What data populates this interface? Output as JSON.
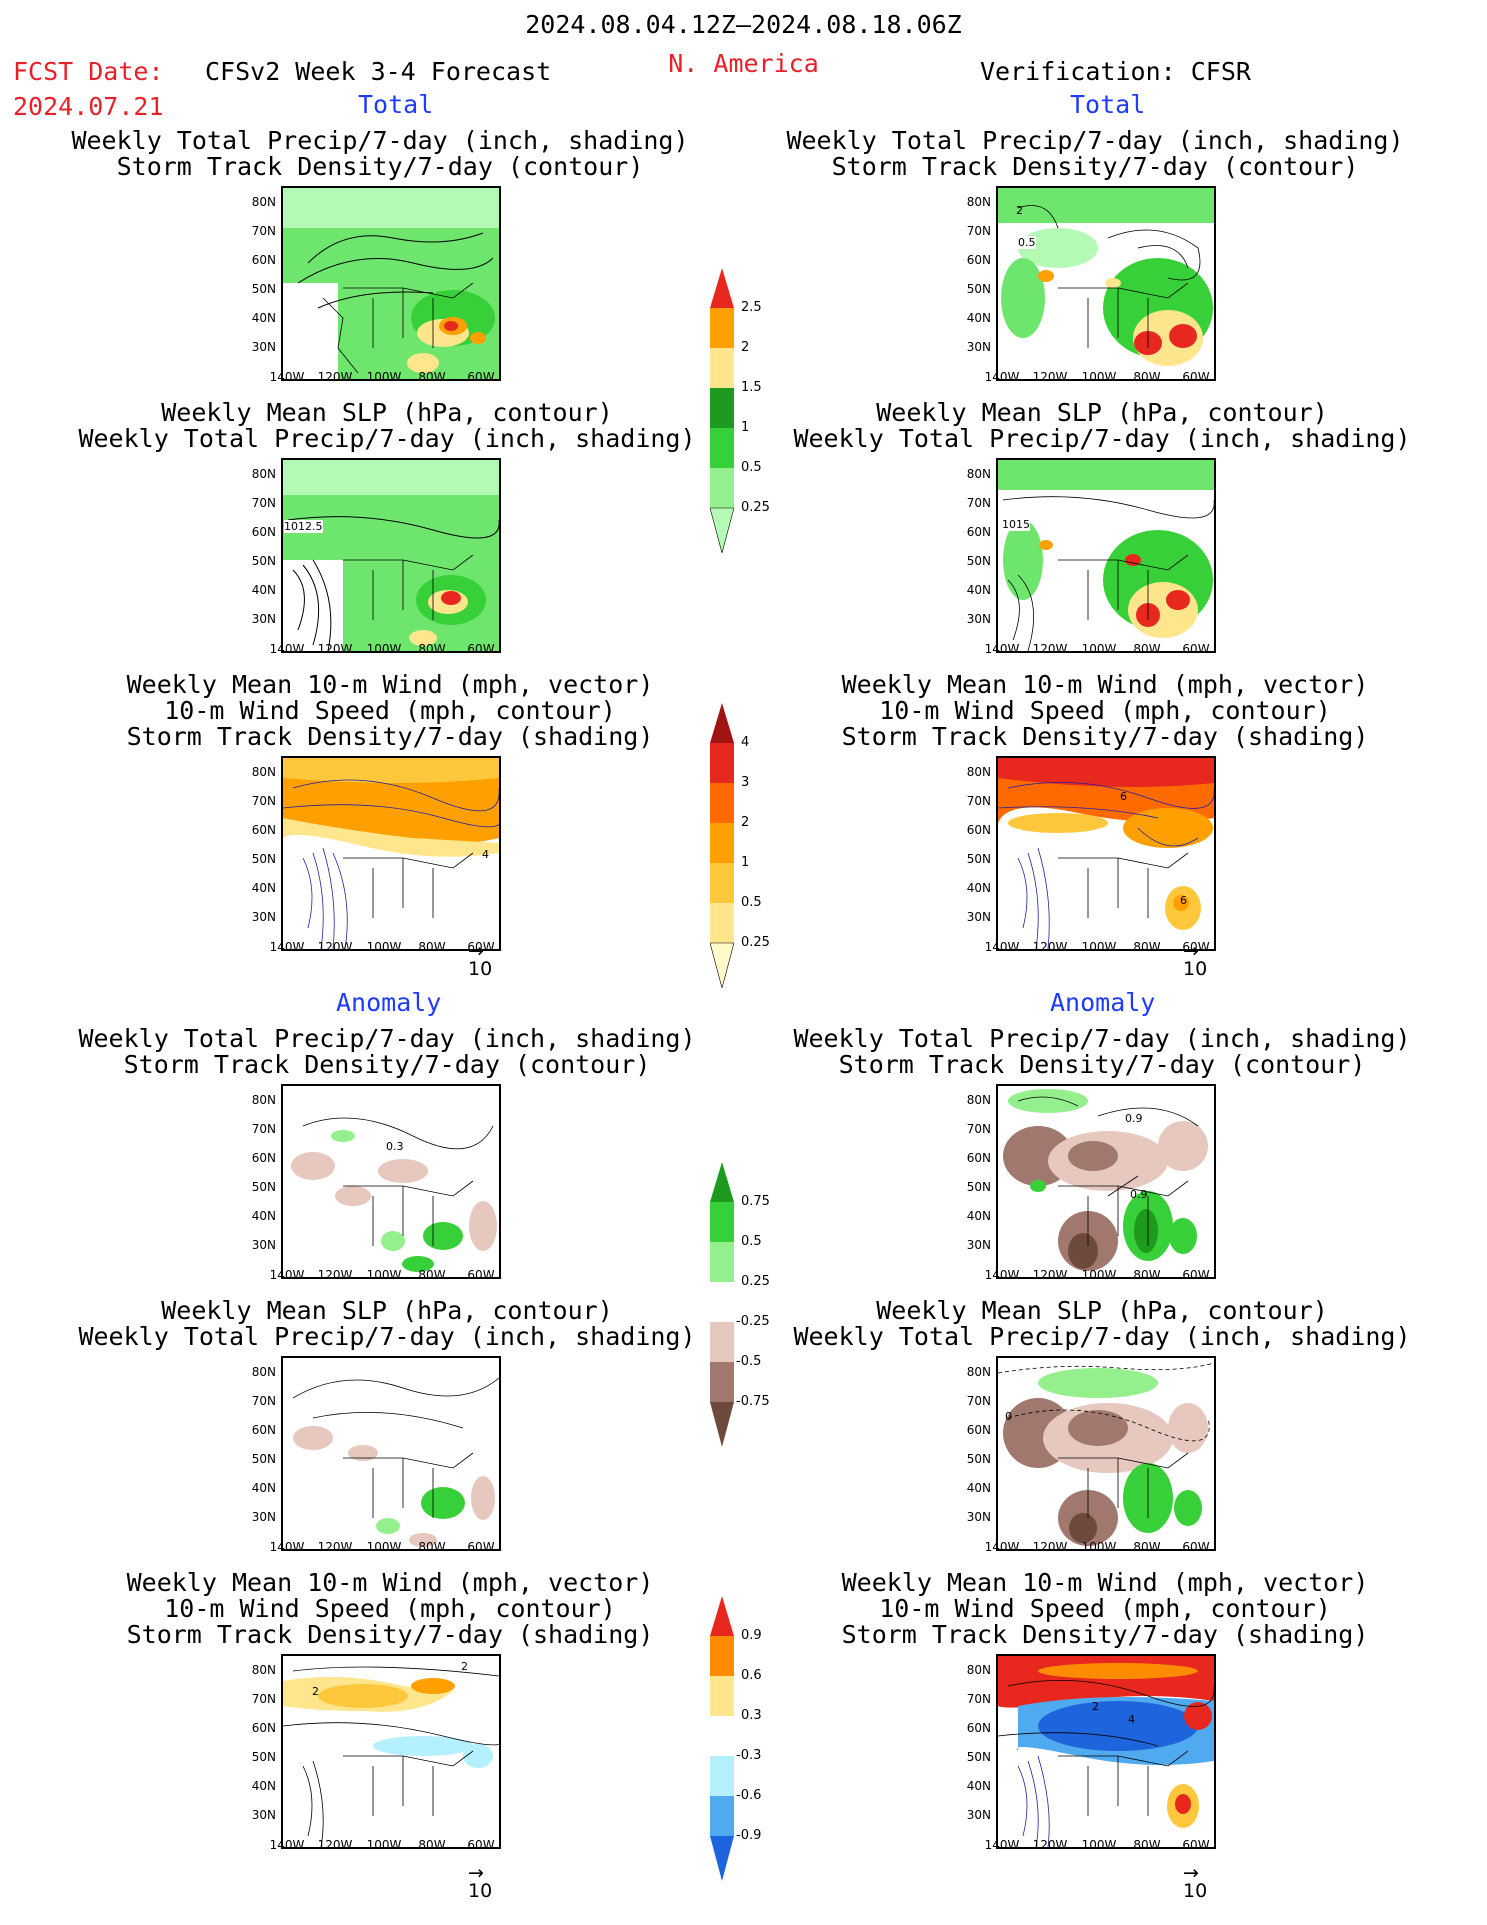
{
  "header": {
    "date_range": "2024.08.04.12Z–2024.08.18.06Z",
    "fcst_label": "FCST Date:",
    "fcst_date": "2024.07.21",
    "forecast_title": "CFSv2 Week 3-4 Forecast",
    "region": "N. America",
    "verification": "Verification: CFSR"
  },
  "sections": {
    "total": "Total",
    "anomaly": "Anomaly"
  },
  "panel_titles": {
    "precip_storm": [
      "Weekly Total Precip/7-day (inch, shading)",
      "Storm Track Density/7-day (contour)"
    ],
    "slp_precip": [
      "Weekly Mean SLP (hPa, contour)",
      "Weekly Total Precip/7-day (inch, shading)"
    ],
    "wind_storm": [
      "Weekly Mean 10-m Wind (mph, vector)",
      "10-m Wind Speed (mph, contour)",
      "Storm Track Density/7-day (shading)"
    ]
  },
  "axes": {
    "lat_labels": [
      "80N",
      "70N",
      "60N",
      "50N",
      "40N",
      "30N"
    ],
    "lon_labels": [
      "140W",
      "120W",
      "100W",
      "80W",
      "60W"
    ]
  },
  "contour_labels": {
    "fc_slp": "1012.5",
    "ob_slp": "1015",
    "ob_precip_a": "2",
    "ob_precip_b": "0.5",
    "fc_wind": "4",
    "ob_wind_a": "6",
    "ob_wind_b": "6",
    "fc_anom_precip": "0.3",
    "ob_anom_precip_a": "0.9",
    "ob_anom_precip_b": "0.9",
    "ob_anom_slp": "0",
    "fc_anom_wind_a": "2",
    "fc_anom_wind_b": "2",
    "ob_anom_wind_a": "2",
    "ob_anom_wind_b": "4"
  },
  "vector_ref": "10",
  "colorbars": {
    "precip_total": {
      "labels": [
        "2.5",
        "2",
        "1.5",
        "1",
        "0.5",
        "0.25"
      ],
      "colors": [
        "#e8281e",
        "#ffa000",
        "#ffe68c",
        "#1e9a1e",
        "#38d038",
        "#94f08c",
        "#b4fab4"
      ]
    },
    "storm_total": {
      "labels": [
        "4",
        "3",
        "2",
        "1",
        "0.5",
        "0.25"
      ],
      "colors": [
        "#a01414",
        "#e8281e",
        "#ff6a00",
        "#ffa000",
        "#ffc83c",
        "#ffe68c",
        "#fffac8"
      ]
    },
    "precip_anom": {
      "labels": [
        "0.75",
        "0.5",
        "0.25",
        "-0.25",
        "-0.5",
        "-0.75"
      ],
      "colors": [
        "#1e9a1e",
        "#38d038",
        "#94f08c",
        "#ffffff",
        "#e6c8be",
        "#a0786e",
        "#6e4a3c"
      ]
    },
    "storm_anom": {
      "labels": [
        "0.9",
        "0.6",
        "0.3",
        "-0.3",
        "-0.6",
        "-0.9"
      ],
      "colors": [
        "#e8281e",
        "#ff8c00",
        "#ffe68c",
        "#ffffff",
        "#b4f0ff",
        "#50aaf0",
        "#1e64dc"
      ]
    }
  }
}
